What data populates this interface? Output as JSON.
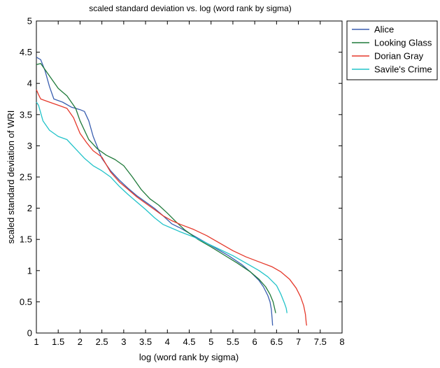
{
  "chart_data": {
    "type": "line",
    "title": "scaled standard deviation vs. log (word rank by sigma)",
    "xlabel": "log (word rank by sigma)",
    "ylabel": "scaled standard deviation of WRI",
    "xlim": [
      1,
      8
    ],
    "ylim": [
      0,
      5
    ],
    "xticks": [
      "1",
      "1.5",
      "2",
      "2.5",
      "3",
      "3.5",
      "4",
      "4.5",
      "5",
      "5.5",
      "6",
      "6.5",
      "7",
      "7.5",
      "8"
    ],
    "yticks": [
      "0",
      "0.5",
      "1",
      "1.5",
      "2",
      "2.5",
      "3",
      "3.5",
      "4",
      "4.5",
      "5"
    ],
    "grid": false,
    "legend_position": "outside-top-right",
    "series": [
      {
        "name": "Alice",
        "color": "#3a5fb0",
        "x": [
          1.0,
          1.1,
          1.2,
          1.3,
          1.4,
          1.6,
          1.8,
          2.0,
          2.1,
          2.2,
          2.3,
          2.5,
          2.7,
          2.9,
          3.1,
          3.3,
          3.5,
          3.7,
          3.9,
          4.1,
          4.3,
          4.5,
          4.8,
          5.1,
          5.4,
          5.7,
          5.9,
          6.1,
          6.2,
          6.3,
          6.35,
          6.38,
          6.4,
          6.41
        ],
        "y": [
          4.42,
          4.38,
          4.2,
          3.95,
          3.75,
          3.7,
          3.62,
          3.58,
          3.55,
          3.4,
          3.15,
          2.8,
          2.6,
          2.45,
          2.32,
          2.2,
          2.1,
          2.0,
          1.88,
          1.75,
          1.68,
          1.6,
          1.48,
          1.36,
          1.24,
          1.1,
          0.98,
          0.84,
          0.74,
          0.6,
          0.5,
          0.38,
          0.22,
          0.12
        ]
      },
      {
        "name": "Looking Glass",
        "color": "#1f7a3a",
        "x": [
          1.0,
          1.1,
          1.3,
          1.5,
          1.7,
          1.9,
          2.0,
          2.2,
          2.4,
          2.6,
          2.8,
          3.0,
          3.2,
          3.4,
          3.6,
          3.8,
          4.0,
          4.2,
          4.4,
          4.7,
          5.0,
          5.3,
          5.6,
          5.9,
          6.1,
          6.25,
          6.35,
          6.42,
          6.46,
          6.48
        ],
        "y": [
          4.3,
          4.32,
          4.12,
          3.92,
          3.8,
          3.6,
          3.4,
          3.1,
          2.95,
          2.85,
          2.78,
          2.68,
          2.5,
          2.3,
          2.15,
          2.05,
          1.92,
          1.78,
          1.65,
          1.5,
          1.38,
          1.25,
          1.12,
          0.98,
          0.86,
          0.74,
          0.62,
          0.5,
          0.38,
          0.32
        ]
      },
      {
        "name": "Dorian Gray",
        "color": "#e5392b",
        "x": [
          1.0,
          1.05,
          1.1,
          1.3,
          1.5,
          1.7,
          1.85,
          2.0,
          2.15,
          2.3,
          2.5,
          2.7,
          2.9,
          3.1,
          3.3,
          3.5,
          3.7,
          3.9,
          4.1,
          4.3,
          4.6,
          4.9,
          5.2,
          5.5,
          5.8,
          6.1,
          6.4,
          6.6,
          6.8,
          6.95,
          7.05,
          7.12,
          7.16,
          7.18,
          7.19
        ],
        "y": [
          3.9,
          3.82,
          3.75,
          3.7,
          3.65,
          3.6,
          3.45,
          3.2,
          3.05,
          2.92,
          2.82,
          2.58,
          2.42,
          2.3,
          2.18,
          2.08,
          1.98,
          1.88,
          1.8,
          1.74,
          1.66,
          1.56,
          1.44,
          1.32,
          1.22,
          1.14,
          1.06,
          0.98,
          0.86,
          0.72,
          0.58,
          0.44,
          0.3,
          0.16,
          0.12
        ]
      },
      {
        "name": "Savile's Crime",
        "color": "#22c3c9",
        "x": [
          1.0,
          1.05,
          1.15,
          1.3,
          1.5,
          1.7,
          1.9,
          2.1,
          2.3,
          2.5,
          2.7,
          2.9,
          3.1,
          3.3,
          3.5,
          3.7,
          3.9,
          4.1,
          4.3,
          4.6,
          4.9,
          5.2,
          5.5,
          5.8,
          6.1,
          6.3,
          6.5,
          6.6,
          6.68,
          6.72,
          6.74
        ],
        "y": [
          3.7,
          3.65,
          3.4,
          3.25,
          3.15,
          3.1,
          2.95,
          2.8,
          2.68,
          2.6,
          2.5,
          2.35,
          2.22,
          2.1,
          1.98,
          1.85,
          1.74,
          1.68,
          1.62,
          1.54,
          1.44,
          1.34,
          1.24,
          1.12,
          1.0,
          0.9,
          0.76,
          0.62,
          0.48,
          0.4,
          0.32
        ]
      }
    ]
  }
}
